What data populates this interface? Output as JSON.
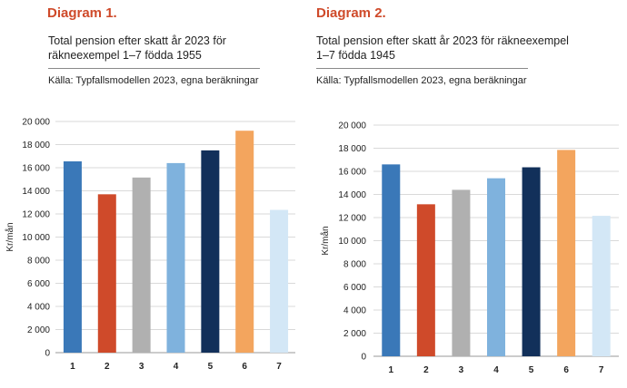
{
  "chart_data": [
    {
      "type": "bar",
      "heading": "Diagram 1.",
      "title": "Total pension efter skatt år 2023 för räkneexempel 1–7 födda 1955",
      "source": "Källa: Typfallsmodellen 2023, egna beräkningar",
      "xlabel": "",
      "ylabel": "Kr/mån",
      "ylim": [
        0,
        20000
      ],
      "ytick_labels": [
        "0",
        "2 000",
        "4 000",
        "6 000",
        "8 000",
        "10 000",
        "12 000",
        "14 000",
        "16 000",
        "18 000",
        "20 000"
      ],
      "categories": [
        "1",
        "2",
        "3",
        "4",
        "5",
        "6",
        "7"
      ],
      "values": [
        16550,
        13700,
        15150,
        16400,
        17500,
        19200,
        12350
      ],
      "colors": [
        "#3a78b8",
        "#cf4a2a",
        "#b0b0b0",
        "#7fb2dd",
        "#12305a",
        "#f3a55e",
        "#d3e7f6"
      ],
      "grid": true
    },
    {
      "type": "bar",
      "heading": "Diagram 2.",
      "title": "Total pension efter skatt år 2023 för räkneexempel 1–7 födda 1945",
      "source": "Källa: Typfallsmodellen 2023, egna beräkningar",
      "xlabel": "",
      "ylabel": "Kr/mån",
      "ylim": [
        0,
        20000
      ],
      "ytick_labels": [
        "0",
        "2 000",
        "4 000",
        "6 000",
        "8 000",
        "10 000",
        "12 000",
        "14 000",
        "16 000",
        "18 000",
        "20 000"
      ],
      "categories": [
        "1",
        "2",
        "3",
        "4",
        "5",
        "6",
        "7"
      ],
      "values": [
        16600,
        13150,
        14400,
        15400,
        16350,
        17850,
        12150
      ],
      "colors": [
        "#3a78b8",
        "#cf4a2a",
        "#b0b0b0",
        "#7fb2dd",
        "#12305a",
        "#f3a55e",
        "#d3e7f6"
      ],
      "grid": true
    }
  ]
}
